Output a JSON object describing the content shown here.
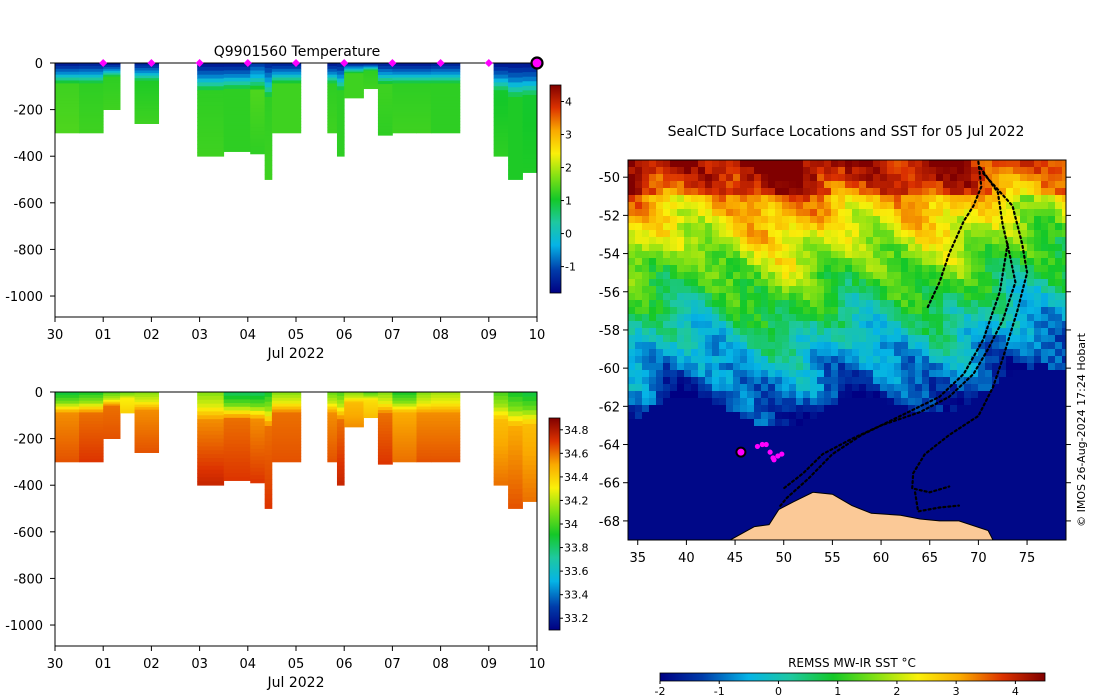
{
  "chart_data": [
    {
      "type": "heatmap",
      "name": "temperature-section",
      "title": "Q9901560  Temperature",
      "xlabel": "Jul 2022",
      "x_ticks": [
        "30",
        "01",
        "02",
        "03",
        "04",
        "05",
        "06",
        "07",
        "08",
        "09",
        "10"
      ],
      "xlim": [
        0,
        10
      ],
      "ylim": [
        -1090,
        0
      ],
      "y_ticks": [
        "0",
        "-200",
        "-400",
        "-600",
        "-800",
        "-1000"
      ],
      "y_tick_values": [
        0,
        -200,
        -400,
        -600,
        -800,
        -1000
      ],
      "colorbar": {
        "ticks": [
          "-1",
          "0",
          "1",
          "2",
          "3",
          "4"
        ],
        "tick_values": [
          -1,
          0,
          1,
          2,
          3,
          4
        ],
        "range": [
          -1.8,
          4.5
        ]
      },
      "profiles": [
        {
          "x0": 0.0,
          "x1": 0.5,
          "depth": 300,
          "surface": -1.6,
          "mid": 1.3,
          "deep": 1.4
        },
        {
          "x0": 0.5,
          "x1": 1.0,
          "depth": 300,
          "surface": -1.5,
          "mid": 1.2,
          "deep": 1.3
        },
        {
          "x0": 1.0,
          "x1": 1.35,
          "depth": 200,
          "surface": -1.6,
          "mid": 1.2,
          "deep": 1.3
        },
        {
          "x0": 1.65,
          "x1": 2.15,
          "depth": 260,
          "surface": -1.5,
          "mid": 1.1,
          "deep": 1.3
        },
        {
          "x0": 2.95,
          "x1": 3.5,
          "depth": 400,
          "surface": -1.6,
          "mid": 1.2,
          "deep": 1.3
        },
        {
          "x0": 3.5,
          "x1": 4.05,
          "depth": 380,
          "surface": -1.6,
          "mid": 1.2,
          "deep": 1.2
        },
        {
          "x0": 4.05,
          "x1": 4.35,
          "depth": 390,
          "surface": -1.2,
          "mid": 1.4,
          "deep": 1.2
        },
        {
          "x0": 4.35,
          "x1": 4.5,
          "depth": 500,
          "surface": -1.4,
          "mid": 1.2,
          "deep": 1.3
        },
        {
          "x0": 4.5,
          "x1": 5.1,
          "depth": 300,
          "surface": -1.5,
          "mid": 1.3,
          "deep": 1.3
        },
        {
          "x0": 5.65,
          "x1": 5.85,
          "depth": 300,
          "surface": -1.6,
          "mid": 1.2,
          "deep": 1.3
        },
        {
          "x0": 5.85,
          "x1": 6.0,
          "depth": 400,
          "surface": -1.5,
          "mid": 1.2,
          "deep": 1.2
        },
        {
          "x0": 6.0,
          "x1": 6.4,
          "depth": 150,
          "surface": -1.5,
          "mid": 1.3,
          "deep": 1.3
        },
        {
          "x0": 6.4,
          "x1": 6.7,
          "depth": 110,
          "surface": -1.6,
          "mid": 1.2,
          "deep": 1.3
        },
        {
          "x0": 6.7,
          "x1": 7.0,
          "depth": 310,
          "surface": -1.5,
          "mid": 1.3,
          "deep": 1.2
        },
        {
          "x0": 7.0,
          "x1": 7.5,
          "depth": 300,
          "surface": -1.6,
          "mid": 1.2,
          "deep": 1.3
        },
        {
          "x0": 7.5,
          "x1": 7.8,
          "depth": 300,
          "surface": -1.6,
          "mid": 1.2,
          "deep": 1.3
        },
        {
          "x0": 7.8,
          "x1": 8.4,
          "depth": 300,
          "surface": -1.5,
          "mid": 1.2,
          "deep": 1.2
        },
        {
          "x0": 9.1,
          "x1": 9.4,
          "depth": 400,
          "surface": -1.6,
          "mid": 1.0,
          "deep": 1.2
        },
        {
          "x0": 9.4,
          "x1": 9.7,
          "depth": 500,
          "surface": -1.6,
          "mid": 1.1,
          "deep": 1.1
        },
        {
          "x0": 9.7,
          "x1": 10.0,
          "depth": 470,
          "surface": -1.6,
          "mid": 1.0,
          "deep": 1.1
        }
      ],
      "surface_markers": [
        1.0,
        2.0,
        3.0,
        4.0,
        5.0,
        6.0,
        7.0,
        8.0,
        9.0
      ],
      "latest_marker": 10.0
    },
    {
      "type": "heatmap",
      "name": "salinity-section",
      "title": "",
      "xlabel": "Jul 2022",
      "x_ticks": [
        "30",
        "01",
        "02",
        "03",
        "04",
        "05",
        "06",
        "07",
        "08",
        "09",
        "10"
      ],
      "xlim": [
        0,
        10
      ],
      "ylim": [
        -1090,
        0
      ],
      "y_ticks": [
        "0",
        "-200",
        "-400",
        "-600",
        "-800",
        "-1000"
      ],
      "y_tick_values": [
        0,
        -200,
        -400,
        -600,
        -800,
        -1000
      ],
      "colorbar": {
        "ticks": [
          "33.2",
          "33.4",
          "33.6",
          "33.8",
          "34",
          "34.2",
          "34.4",
          "34.6",
          "34.8"
        ],
        "tick_values": [
          33.2,
          33.4,
          33.6,
          33.8,
          34.0,
          34.2,
          34.4,
          34.6,
          34.8
        ],
        "range": [
          33.1,
          34.9
        ]
      },
      "profiles": [
        {
          "x0": 0.0,
          "x1": 0.5,
          "depth": 300,
          "surface": 33.85,
          "mid": 34.55,
          "deep": 34.65
        },
        {
          "x0": 0.5,
          "x1": 1.0,
          "depth": 300,
          "surface": 33.9,
          "mid": 34.6,
          "deep": 34.7
        },
        {
          "x0": 1.0,
          "x1": 1.35,
          "depth": 200,
          "surface": 34.0,
          "mid": 34.6,
          "deep": 34.65
        },
        {
          "x0": 1.35,
          "x1": 1.65,
          "depth": 90,
          "surface": 34.05,
          "mid": 34.3,
          "deep": 34.4
        },
        {
          "x0": 1.65,
          "x1": 2.15,
          "depth": 260,
          "surface": 34.1,
          "mid": 34.55,
          "deep": 34.65
        },
        {
          "x0": 2.95,
          "x1": 3.5,
          "depth": 400,
          "surface": 34.1,
          "mid": 34.55,
          "deep": 34.75
        },
        {
          "x0": 3.5,
          "x1": 4.05,
          "depth": 380,
          "surface": 33.8,
          "mid": 34.6,
          "deep": 34.7
        },
        {
          "x0": 4.05,
          "x1": 4.35,
          "depth": 390,
          "surface": 33.8,
          "mid": 34.55,
          "deep": 34.7
        },
        {
          "x0": 4.35,
          "x1": 4.5,
          "depth": 500,
          "surface": 33.9,
          "mid": 34.6,
          "deep": 34.7
        },
        {
          "x0": 4.5,
          "x1": 5.1,
          "depth": 300,
          "surface": 34.1,
          "mid": 34.6,
          "deep": 34.65
        },
        {
          "x0": 5.65,
          "x1": 5.85,
          "depth": 300,
          "surface": 34.05,
          "mid": 34.55,
          "deep": 34.65
        },
        {
          "x0": 5.85,
          "x1": 6.0,
          "depth": 400,
          "surface": 34.0,
          "mid": 34.6,
          "deep": 34.75
        },
        {
          "x0": 6.0,
          "x1": 6.4,
          "depth": 150,
          "surface": 34.1,
          "mid": 34.45,
          "deep": 34.55
        },
        {
          "x0": 6.4,
          "x1": 6.7,
          "depth": 110,
          "surface": 34.0,
          "mid": 34.35,
          "deep": 34.45
        },
        {
          "x0": 6.7,
          "x1": 7.0,
          "depth": 310,
          "surface": 34.1,
          "mid": 34.6,
          "deep": 34.7
        },
        {
          "x0": 7.0,
          "x1": 7.5,
          "depth": 300,
          "surface": 33.9,
          "mid": 34.5,
          "deep": 34.6
        },
        {
          "x0": 7.5,
          "x1": 7.8,
          "depth": 300,
          "surface": 34.1,
          "mid": 34.55,
          "deep": 34.65
        },
        {
          "x0": 7.8,
          "x1": 8.4,
          "depth": 300,
          "surface": 34.15,
          "mid": 34.55,
          "deep": 34.65
        },
        {
          "x0": 9.1,
          "x1": 9.4,
          "depth": 400,
          "surface": 34.0,
          "mid": 34.45,
          "deep": 34.6
        },
        {
          "x0": 9.4,
          "x1": 9.7,
          "depth": 500,
          "surface": 33.9,
          "mid": 34.5,
          "deep": 34.65
        },
        {
          "x0": 9.7,
          "x1": 10.0,
          "depth": 470,
          "surface": 33.85,
          "mid": 34.45,
          "deep": 34.6
        }
      ]
    },
    {
      "type": "heatmap",
      "name": "sst-map",
      "title": "SealCTD Surface Locations and SST for 05 Jul 2022",
      "x_ticks": [
        "35",
        "40",
        "45",
        "50",
        "55",
        "60",
        "65",
        "70",
        "75"
      ],
      "x_tick_values": [
        35,
        40,
        45,
        50,
        55,
        60,
        65,
        70,
        75
      ],
      "y_ticks": [
        "-50",
        "-52",
        "-54",
        "-56",
        "-58",
        "-60",
        "-62",
        "-64",
        "-66",
        "-68"
      ],
      "y_tick_values": [
        -50,
        -52,
        -54,
        -56,
        -58,
        -60,
        -62,
        -64,
        -66,
        -68
      ],
      "lon_range": [
        34,
        79
      ],
      "lat_range": [
        -69,
        -49.1
      ],
      "colorbar_label": "REMSS MW-IR SST °C",
      "colorbar_ticks": [
        "-2",
        "-1",
        "0",
        "1",
        "2",
        "3",
        "4"
      ],
      "colorbar_tick_values": [
        -2,
        -1,
        0,
        1,
        2,
        3,
        4
      ],
      "colorbar_range": [
        -2,
        4.5
      ],
      "credit": "© IMOS 26-Aug-2024 17:24 Hobart",
      "seal_positions": [
        {
          "lon": 47.3,
          "lat": -64.1
        },
        {
          "lon": 47.8,
          "lat": -64.0
        },
        {
          "lon": 48.2,
          "lat": -64.0
        },
        {
          "lon": 48.6,
          "lat": -64.4
        },
        {
          "lon": 48.9,
          "lat": -64.7
        },
        {
          "lon": 49.4,
          "lat": -64.6
        },
        {
          "lon": 49.8,
          "lat": -64.5
        },
        {
          "lon": 49.0,
          "lat": -64.8
        }
      ],
      "latest_position": {
        "lon": 45.6,
        "lat": -64.4
      }
    }
  ]
}
